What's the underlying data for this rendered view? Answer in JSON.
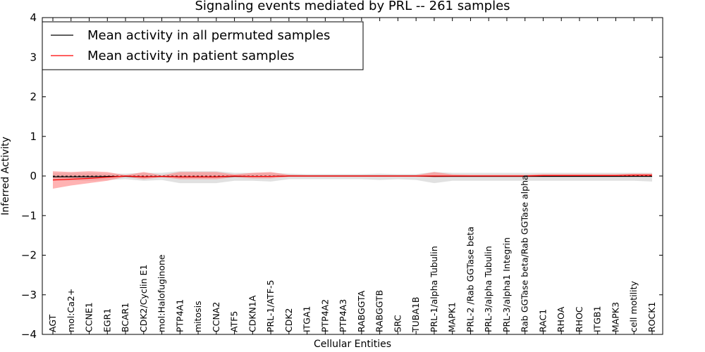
{
  "chart_data": {
    "type": "line",
    "title": "Signaling events mediated by PRL -- 261 samples",
    "xlabel": "Cellular Entities",
    "ylabel": "Inferred Activity",
    "ylim": [
      -4,
      4
    ],
    "yticks": [
      -4,
      -3,
      -2,
      -1,
      0,
      1,
      2,
      3,
      4
    ],
    "ytick_labels": [
      "−4",
      "−3",
      "−2",
      "−1",
      "0",
      "1",
      "2",
      "3",
      "4"
    ],
    "grid": false,
    "legend_position": "top-left",
    "categories": [
      "AGT",
      "mol:Ca2+",
      "CCNE1",
      "EGR1",
      "BCAR1",
      "CDK2/Cyclin E1",
      "mol:Halofuginone",
      "PTP4A1",
      "mitosis",
      "CCNA2",
      "ATF5",
      "CDKN1A",
      "PRL-1/ATF-5",
      "CDK2",
      "ITGA1",
      "PTP4A2",
      "PTP4A3",
      "RABGGTA",
      "RABGGTB",
      "SRC",
      "TUBA1B",
      "PRL-1/alpha Tubulin",
      "MAPK1",
      "PRL-2 /Rab GGTase beta",
      "PRL-3/alpha Tubulin",
      "PRL-3/alpha1 Integrin",
      "Rab GGTase beta/Rab GGTase alpha",
      "RAC1",
      "RHOA",
      "RHOC",
      "ITGB1",
      "MAPK3",
      "cell motility",
      "ROCK1"
    ],
    "series": [
      {
        "name": "Mean activity in all permuted samples",
        "color": "#000000",
        "band_color": "#c8c8c8",
        "values": [
          -0.02,
          -0.02,
          -0.02,
          -0.01,
          -0.01,
          -0.02,
          -0.01,
          -0.02,
          -0.02,
          -0.02,
          -0.01,
          -0.01,
          -0.01,
          0.0,
          0.0,
          0.0,
          0.0,
          0.0,
          0.0,
          0.0,
          0.0,
          -0.01,
          -0.01,
          -0.01,
          -0.01,
          -0.01,
          -0.01,
          -0.01,
          -0.01,
          -0.01,
          -0.01,
          -0.01,
          -0.01,
          -0.01
        ],
        "lower": [
          -0.12,
          -0.12,
          -0.12,
          -0.1,
          -0.08,
          -0.12,
          -0.1,
          -0.18,
          -0.18,
          -0.18,
          -0.12,
          -0.12,
          -0.14,
          -0.08,
          -0.08,
          -0.08,
          -0.08,
          -0.08,
          -0.1,
          -0.08,
          -0.1,
          -0.18,
          -0.12,
          -0.12,
          -0.12,
          -0.12,
          -0.12,
          -0.12,
          -0.12,
          -0.12,
          -0.12,
          -0.12,
          -0.12,
          -0.14
        ],
        "upper": [
          0.08,
          0.08,
          0.08,
          0.06,
          0.06,
          0.08,
          0.08,
          0.12,
          0.12,
          0.12,
          0.08,
          0.08,
          0.08,
          0.06,
          0.05,
          0.05,
          0.05,
          0.05,
          0.06,
          0.05,
          0.05,
          0.1,
          0.08,
          0.08,
          0.08,
          0.08,
          0.08,
          0.08,
          0.08,
          0.08,
          0.08,
          0.08,
          0.08,
          0.08
        ]
      },
      {
        "name": "Mean activity in patient samples",
        "color": "#ff0000",
        "band_color": "#ff8080",
        "values": [
          -0.1,
          -0.08,
          -0.06,
          -0.03,
          0.0,
          -0.02,
          -0.01,
          -0.02,
          -0.02,
          -0.02,
          0.0,
          -0.01,
          -0.01,
          0.0,
          0.0,
          0.0,
          0.0,
          0.0,
          0.0,
          0.0,
          0.0,
          0.0,
          0.0,
          0.0,
          0.0,
          0.0,
          0.0,
          0.01,
          0.01,
          0.01,
          0.01,
          0.01,
          0.02,
          0.02
        ],
        "lower": [
          -0.32,
          -0.24,
          -0.18,
          -0.12,
          -0.02,
          -0.08,
          -0.03,
          -0.08,
          -0.08,
          -0.08,
          -0.03,
          -0.06,
          -0.06,
          -0.02,
          -0.02,
          -0.02,
          -0.02,
          -0.02,
          -0.02,
          -0.02,
          -0.02,
          -0.03,
          -0.02,
          -0.02,
          -0.02,
          -0.02,
          -0.02,
          -0.02,
          -0.02,
          -0.02,
          -0.02,
          -0.02,
          -0.02,
          -0.02
        ],
        "upper": [
          0.12,
          0.1,
          0.12,
          0.1,
          0.02,
          0.1,
          0.02,
          0.1,
          0.1,
          0.1,
          0.04,
          0.08,
          0.1,
          0.03,
          0.02,
          0.02,
          0.02,
          0.02,
          0.02,
          0.02,
          0.02,
          0.1,
          0.04,
          0.03,
          0.03,
          0.03,
          0.03,
          0.05,
          0.05,
          0.05,
          0.05,
          0.05,
          0.06,
          0.06
        ]
      }
    ]
  }
}
